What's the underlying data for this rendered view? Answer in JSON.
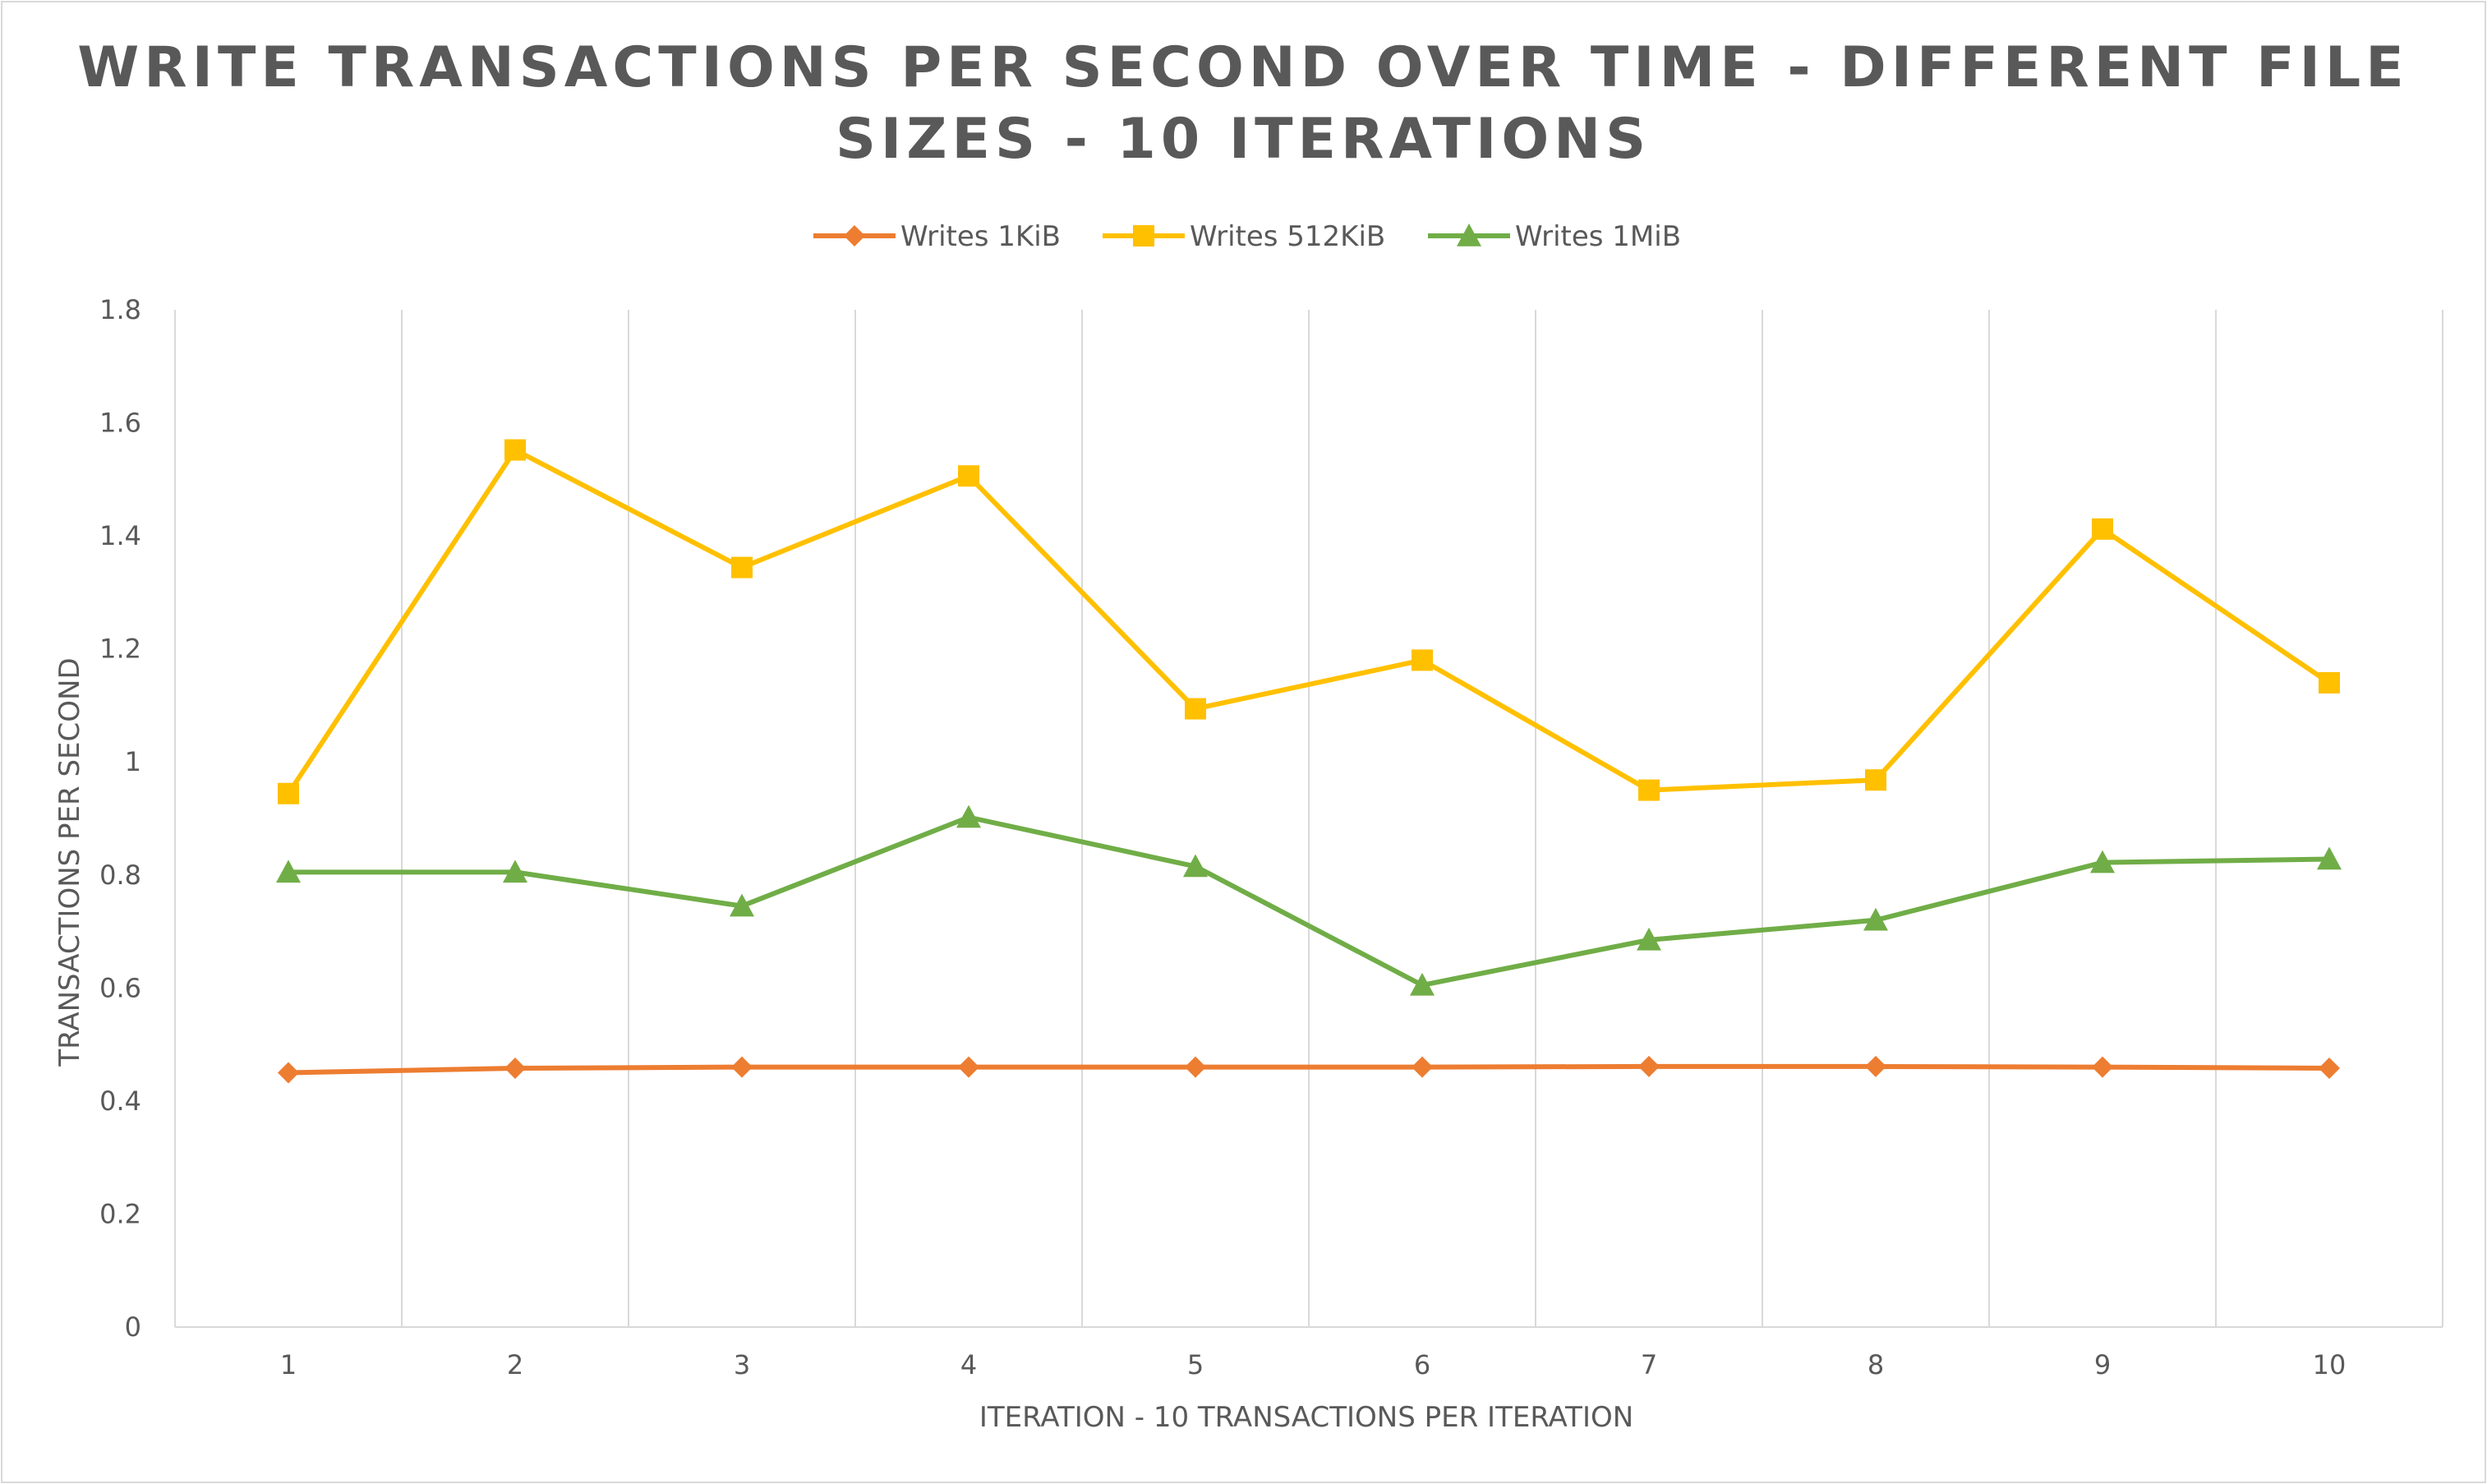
{
  "chart_data": {
    "type": "line",
    "title_line1": "WRITE TRANSACTIONS PER SECOND OVER TIME - DIFFERENT FILE",
    "title_line2": "SIZES - 10 ITERATIONS",
    "xlabel": "ITERATION - 10 TRANSACTIONS PER ITERATION",
    "ylabel": "TRANSACTIONS PER SECOND",
    "categories": [
      "1",
      "2",
      "3",
      "4",
      "5",
      "6",
      "7",
      "8",
      "9",
      "10"
    ],
    "y_ticks": [
      "0",
      "0.2",
      "0.4",
      "0.6",
      "0.8",
      "1",
      "1.2",
      "1.4",
      "1.6",
      "1.8"
    ],
    "ylim": [
      0,
      1.8
    ],
    "grid": "vertical",
    "legend_position": "top",
    "series": [
      {
        "name": "Writes 1KiB",
        "color": "#ED7D31",
        "marker": "diamond",
        "values": [
          0.45,
          0.458,
          0.46,
          0.46,
          0.46,
          0.46,
          0.461,
          0.461,
          0.46,
          0.458
        ]
      },
      {
        "name": "Writes 512KiB",
        "color": "#FFC000",
        "marker": "square",
        "values": [
          0.944,
          1.552,
          1.344,
          1.506,
          1.094,
          1.18,
          0.95,
          0.968,
          1.412,
          1.14
        ]
      },
      {
        "name": "Writes 1MiB",
        "color": "#70AD47",
        "marker": "triangle",
        "values": [
          0.805,
          0.805,
          0.745,
          0.902,
          0.815,
          0.605,
          0.685,
          0.72,
          0.822,
          0.828
        ]
      }
    ]
  }
}
